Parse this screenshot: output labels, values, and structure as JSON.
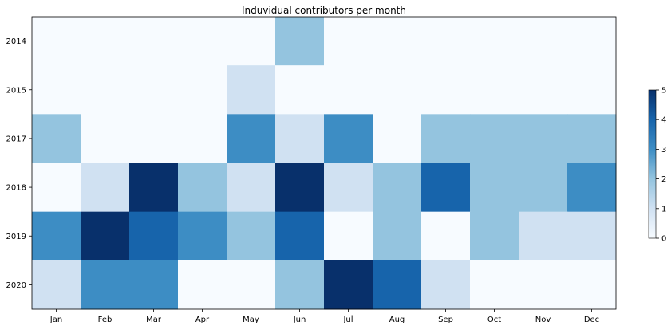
{
  "chart_data": {
    "type": "heatmap",
    "title": "Induvidual contributors per month",
    "xlabel": "",
    "ylabel": "",
    "x_categories": [
      "Jan",
      "Feb",
      "Mar",
      "Apr",
      "May",
      "Jun",
      "Jul",
      "Aug",
      "Sep",
      "Oct",
      "Nov",
      "Dec"
    ],
    "y_categories": [
      "2014",
      "2015",
      "2017",
      "2018",
      "2019",
      "2020"
    ],
    "values": [
      [
        0,
        0,
        0,
        0,
        0,
        2,
        0,
        0,
        0,
        0,
        0,
        0
      ],
      [
        0,
        0,
        0,
        0,
        1,
        0,
        0,
        0,
        0,
        0,
        0,
        0
      ],
      [
        2,
        0,
        0,
        0,
        3,
        1,
        3,
        0,
        2,
        2,
        2,
        2
      ],
      [
        0,
        1,
        5,
        2,
        1,
        5,
        1,
        2,
        4,
        2,
        2,
        3
      ],
      [
        3,
        5,
        4,
        3,
        2,
        4,
        0,
        2,
        0,
        2,
        1,
        1
      ],
      [
        1,
        3,
        3,
        0,
        0,
        2,
        5,
        4,
        1,
        0,
        0,
        0
      ]
    ],
    "colormap": "Blues",
    "colorbar": {
      "min": 0,
      "max": 5,
      "ticks": [
        "0",
        "1",
        "2",
        "3",
        "4",
        "5"
      ]
    },
    "palette": [
      "#f7fbff",
      "#d0e1f2",
      "#94c4df",
      "#3d8dc4",
      "#1764ab",
      "#08306b"
    ],
    "grid": false,
    "legend": "colorbar-right"
  }
}
